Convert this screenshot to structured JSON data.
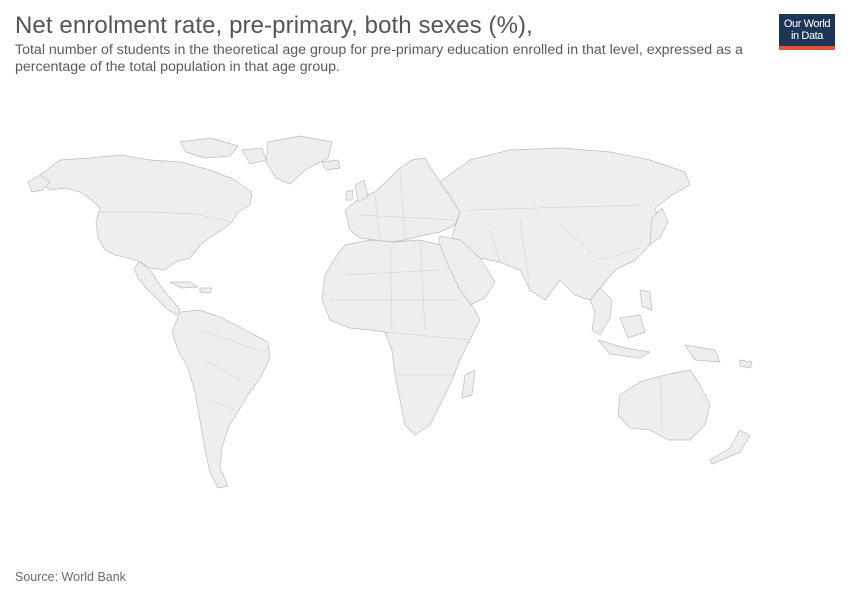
{
  "header": {
    "title": "Net enrolment rate, pre-primary, both sexes (%),",
    "subtitle": "Total number of students in the theoretical age group for pre-primary education enrolled in that level, expressed as a percentage of the total population in that age group."
  },
  "logo": {
    "line1": "Our World",
    "line2": "in Data",
    "bg_color": "#1d3557",
    "accent_color": "#e0533c"
  },
  "map": {
    "land_color": "#eeeeee",
    "border_color": "#bdbdbd",
    "has_data": false
  },
  "footer": {
    "source": "Source: World Bank"
  }
}
